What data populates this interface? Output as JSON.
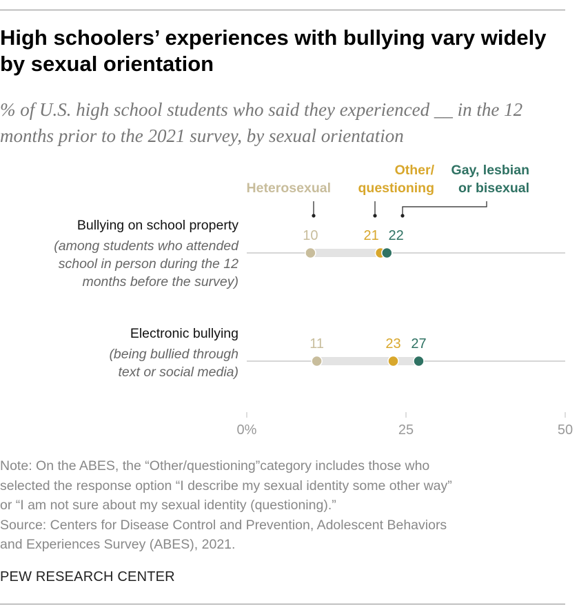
{
  "title": "High schoolers’ experiences with bullying vary widely by sexual orientation",
  "subtitle": "% of U.S. high school students who said they experienced __ in the 12 months prior to the 2021 survey, by sexual orientation",
  "colors": {
    "heterosexual": "#c8bd9c",
    "other": "#d8a72c",
    "glb": "#2f7263",
    "band": "#e3e3e3",
    "axis": "#bdbdbd",
    "label": "#111111",
    "note": "#888888"
  },
  "chart_data": {
    "type": "dot",
    "xlim": [
      0,
      50
    ],
    "ticks": [
      {
        "value": 0,
        "label": "0%"
      },
      {
        "value": 25,
        "label": "25"
      },
      {
        "value": 50,
        "label": "50"
      }
    ],
    "series": [
      {
        "key": "heterosexual",
        "name": "Heterosexual",
        "legend_lines": [
          "Heterosexual"
        ]
      },
      {
        "key": "other",
        "name": "Other/questioning",
        "legend_lines": [
          "Other/",
          "questioning"
        ]
      },
      {
        "key": "glb",
        "name": "Gay, lesbian or bisexual",
        "legend_lines": [
          "Gay, lesbian",
          "or bisexual"
        ]
      }
    ],
    "categories": [
      {
        "label": "Bullying on school property",
        "sublabel_lines": [
          "(among students who attended",
          "school in person during the 12",
          "months before the survey)"
        ],
        "values": {
          "heterosexual": 10,
          "other": 21,
          "glb": 22
        }
      },
      {
        "label": "Electronic bullying",
        "sublabel_lines": [
          "(being bullied through",
          "text or social media)"
        ],
        "values": {
          "heterosexual": 11,
          "other": 23,
          "glb": 27
        }
      }
    ]
  },
  "notes": {
    "note_lines": [
      "Note: On the ABES, the “Other/questioning”category includes those who",
      "selected the response option “I describe my sexual identity some other way”",
      "or “I am not sure about my sexual identity (questioning).”"
    ],
    "source_lines": [
      "Source: Centers for Disease Control and Prevention, Adolescent Behaviors",
      "and Experiences Survey (ABES), 2021."
    ]
  },
  "brand": "PEW RESEARCH CENTER"
}
